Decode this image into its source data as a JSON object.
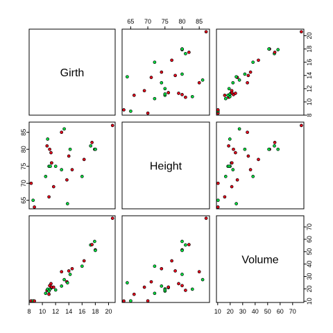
{
  "chart_data": {
    "type": "scatter-matrix",
    "variables": [
      "Girth",
      "Height",
      "Volume"
    ],
    "colors": {
      "red": "#e8001c",
      "green": "#00e040"
    },
    "axes": {
      "Girth": {
        "range": [
          8,
          21
        ],
        "ticks": [
          8,
          10,
          12,
          14,
          16,
          18,
          20
        ]
      },
      "Height": {
        "range": [
          62.5,
          88
        ],
        "ticks": [
          65,
          70,
          75,
          80,
          85
        ]
      },
      "Volume": {
        "range": [
          9,
          79
        ],
        "ticks": [
          10,
          20,
          30,
          40,
          50,
          60,
          70
        ]
      }
    },
    "observations": [
      {
        "Girth": 8.3,
        "Height": 70,
        "Volume": 10.3,
        "color": "red"
      },
      {
        "Girth": 8.6,
        "Height": 65,
        "Volume": 10.3,
        "color": "green"
      },
      {
        "Girth": 8.8,
        "Height": 63,
        "Volume": 10.2,
        "color": "red"
      },
      {
        "Girth": 10.5,
        "Height": 72,
        "Volume": 16.4,
        "color": "green"
      },
      {
        "Girth": 10.7,
        "Height": 81,
        "Volume": 18.8,
        "color": "red"
      },
      {
        "Girth": 10.8,
        "Height": 83,
        "Volume": 19.7,
        "color": "green"
      },
      {
        "Girth": 11.0,
        "Height": 66,
        "Volume": 15.6,
        "color": "red"
      },
      {
        "Girth": 11.0,
        "Height": 75,
        "Volume": 18.2,
        "color": "green"
      },
      {
        "Girth": 11.1,
        "Height": 80,
        "Volume": 22.6,
        "color": "red"
      },
      {
        "Girth": 11.2,
        "Height": 75,
        "Volume": 19.9,
        "color": "green"
      },
      {
        "Girth": 11.3,
        "Height": 79,
        "Volume": 24.2,
        "color": "red"
      },
      {
        "Girth": 11.4,
        "Height": 76,
        "Volume": 21.0,
        "color": "green"
      },
      {
        "Girth": 11.4,
        "Height": 76,
        "Volume": 21.4,
        "color": "red"
      },
      {
        "Girth": 11.7,
        "Height": 69,
        "Volume": 21.3,
        "color": "red"
      },
      {
        "Girth": 12.0,
        "Height": 75,
        "Volume": 19.1,
        "color": "green"
      },
      {
        "Girth": 12.9,
        "Height": 74,
        "Volume": 22.2,
        "color": "green"
      },
      {
        "Girth": 12.9,
        "Height": 85,
        "Volume": 33.8,
        "color": "red"
      },
      {
        "Girth": 13.3,
        "Height": 86,
        "Volume": 27.4,
        "color": "green"
      },
      {
        "Girth": 13.7,
        "Height": 71,
        "Volume": 25.7,
        "color": "red"
      },
      {
        "Girth": 13.8,
        "Height": 64,
        "Volume": 24.9,
        "color": "green"
      },
      {
        "Girth": 14.0,
        "Height": 78,
        "Volume": 34.5,
        "color": "red"
      },
      {
        "Girth": 14.2,
        "Height": 80,
        "Volume": 31.7,
        "color": "green"
      },
      {
        "Girth": 14.5,
        "Height": 74,
        "Volume": 36.3,
        "color": "red"
      },
      {
        "Girth": 16.0,
        "Height": 72,
        "Volume": 38.3,
        "color": "green"
      },
      {
        "Girth": 16.3,
        "Height": 77,
        "Volume": 42.6,
        "color": "red"
      },
      {
        "Girth": 17.3,
        "Height": 81,
        "Volume": 55.4,
        "color": "green"
      },
      {
        "Girth": 17.5,
        "Height": 82,
        "Volume": 55.7,
        "color": "red"
      },
      {
        "Girth": 17.9,
        "Height": 80,
        "Volume": 58.3,
        "color": "green"
      },
      {
        "Girth": 18.0,
        "Height": 80,
        "Volume": 51.5,
        "color": "red"
      },
      {
        "Girth": 18.0,
        "Height": 80,
        "Volume": 51.0,
        "color": "green"
      },
      {
        "Girth": 20.6,
        "Height": 87,
        "Volume": 77.0,
        "color": "red"
      }
    ]
  }
}
